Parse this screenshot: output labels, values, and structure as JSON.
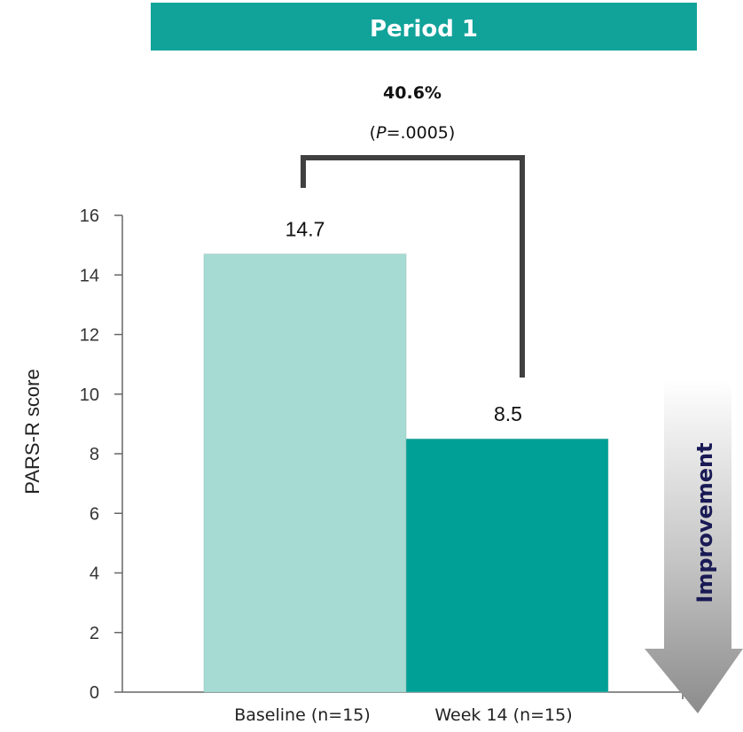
{
  "header": {
    "title": "Period 1"
  },
  "colors": {
    "banner": "#11a399",
    "baseline": "#a6dbd3",
    "week14": "#00a096",
    "bracket": "#404040",
    "improvement_text": "#1a1a55"
  },
  "annotation": {
    "percent": "40.6%",
    "p_label": "P",
    "p_value": "=.0005"
  },
  "improvement_label": "Improvement",
  "chart_data": {
    "type": "bar",
    "categories": [
      "Baseline (n=15)",
      "Week 14 (n=15)"
    ],
    "values": [
      14.7,
      8.5
    ],
    "value_labels": [
      "14.7",
      "8.5"
    ],
    "ylabel": "PARS-R score",
    "ylim": [
      0,
      16
    ],
    "yticks": [
      0,
      2,
      4,
      6,
      8,
      10,
      12,
      14,
      16
    ],
    "grid": false
  }
}
